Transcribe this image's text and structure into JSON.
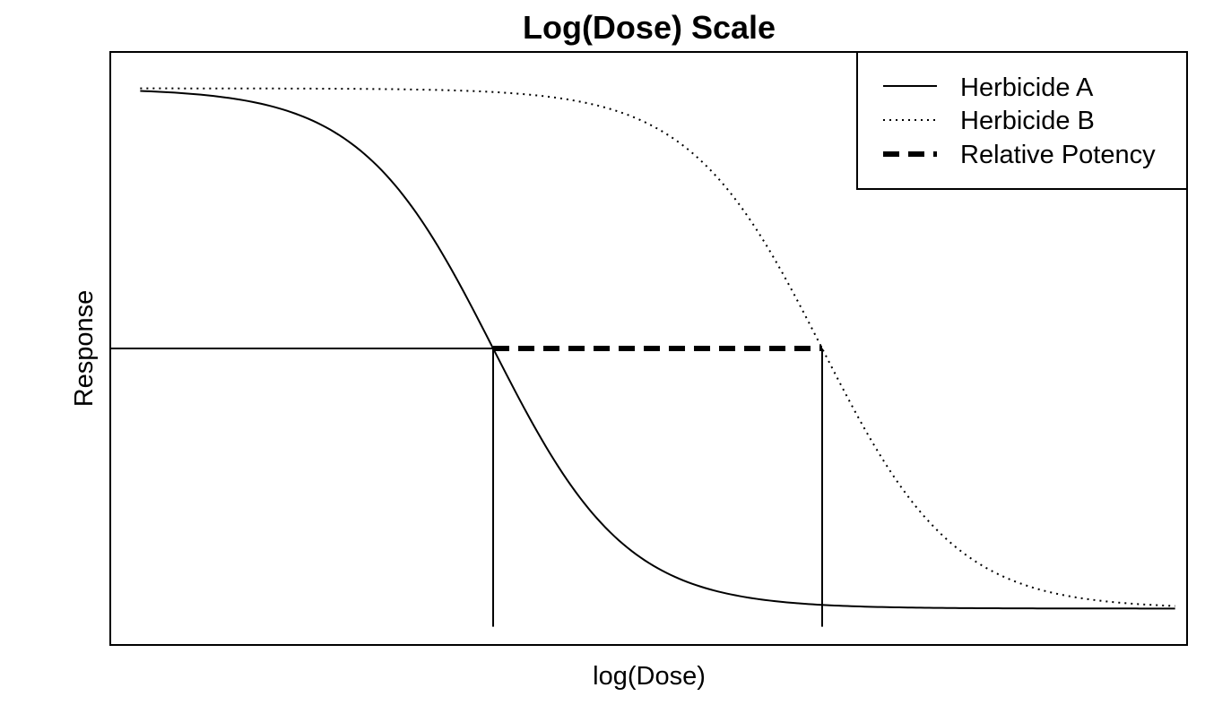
{
  "chart_data": {
    "type": "line",
    "title": "Log(Dose) Scale",
    "xlabel": "log(Dose)",
    "ylabel": "Response",
    "xlim": [
      -4,
      5
    ],
    "ylim": [
      -0.07,
      1.07
    ],
    "axis_ticks": false,
    "legend_position": "top-right",
    "model": "4-parameter log-logistic (response decreasing with log dose)",
    "series": [
      {
        "name": "Herbicide A",
        "style": "solid",
        "color": "#000000",
        "params": {
          "upper": 1.0,
          "lower": 0.0,
          "ed50_log": -0.8,
          "slope": 1.8
        },
        "x": [
          -3.75,
          -3,
          -2.5,
          -2,
          -1.5,
          -1,
          -0.8,
          -0.5,
          0,
          0.5,
          1,
          2,
          3,
          4,
          4.9
        ],
        "y": [
          0.996,
          0.983,
          0.96,
          0.91,
          0.8,
          0.59,
          0.5,
          0.37,
          0.19,
          0.09,
          0.04,
          0.01,
          0.002,
          0.001,
          0.0
        ]
      },
      {
        "name": "Herbicide B",
        "style": "dotted",
        "color": "#000000",
        "params": {
          "upper": 1.0,
          "lower": 0.0,
          "ed50_log": 1.95,
          "slope": 1.8
        },
        "x": [
          -3.75,
          -2,
          -1,
          0,
          0.5,
          1,
          1.5,
          1.95,
          2.5,
          3,
          3.5,
          4,
          4.9
        ],
        "y": [
          1.0,
          0.999,
          0.996,
          0.97,
          0.93,
          0.85,
          0.69,
          0.5,
          0.27,
          0.13,
          0.06,
          0.03,
          0.01
        ]
      },
      {
        "name": "Relative Potency",
        "style": "dashed-thick",
        "color": "#000000",
        "x": [
          -0.8,
          1.95
        ],
        "y": [
          0.5,
          0.5
        ]
      }
    ],
    "reference_lines": {
      "horizontal_y": 0.5,
      "vertical_x": [
        -0.8,
        1.95
      ]
    }
  }
}
